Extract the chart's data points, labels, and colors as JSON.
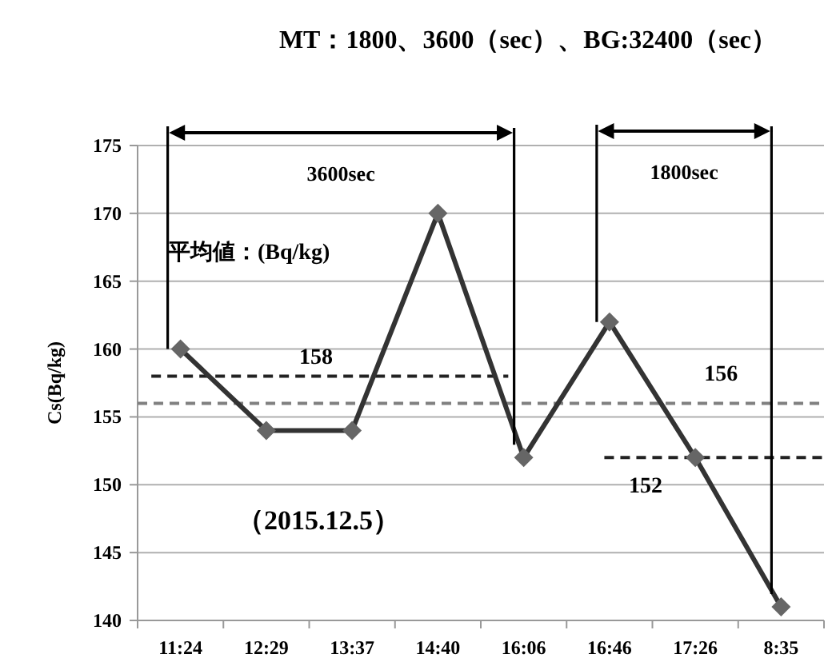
{
  "chart_data": {
    "type": "line",
    "title": "MT：1800、3600（sec）、BG:32400（sec）",
    "ylabel": "Cs(Bq/kg)",
    "categories": [
      "11:24",
      "12:29",
      "13:37",
      "14:40",
      "16:06",
      "16:46",
      "17:26",
      "8:35"
    ],
    "series": [
      {
        "color": "#333333",
        "values": [
          160,
          154,
          154,
          170,
          152,
          162,
          152,
          141
        ]
      }
    ],
    "ylim": [
      140,
      175
    ],
    "yticks": [
      140,
      145,
      150,
      155,
      160,
      165,
      170,
      175
    ],
    "grid": "y",
    "marker": "diamond",
    "line_style": "solid",
    "ref_lines": [
      {
        "axis": "y",
        "value": 158,
        "label": "158",
        "color": "#222222",
        "line_style": "dashed"
      },
      {
        "axis": "y",
        "value": 156,
        "label": "156",
        "color": "#808080",
        "line_style": "dashed"
      },
      {
        "axis": "y",
        "value": 152,
        "label": "152",
        "color": "#222222",
        "line_style": "dashed"
      }
    ],
    "annotations": [
      "3600sec",
      "1800sec",
      "平均値：(Bq/kg)",
      "（2015.12.5）"
    ]
  }
}
